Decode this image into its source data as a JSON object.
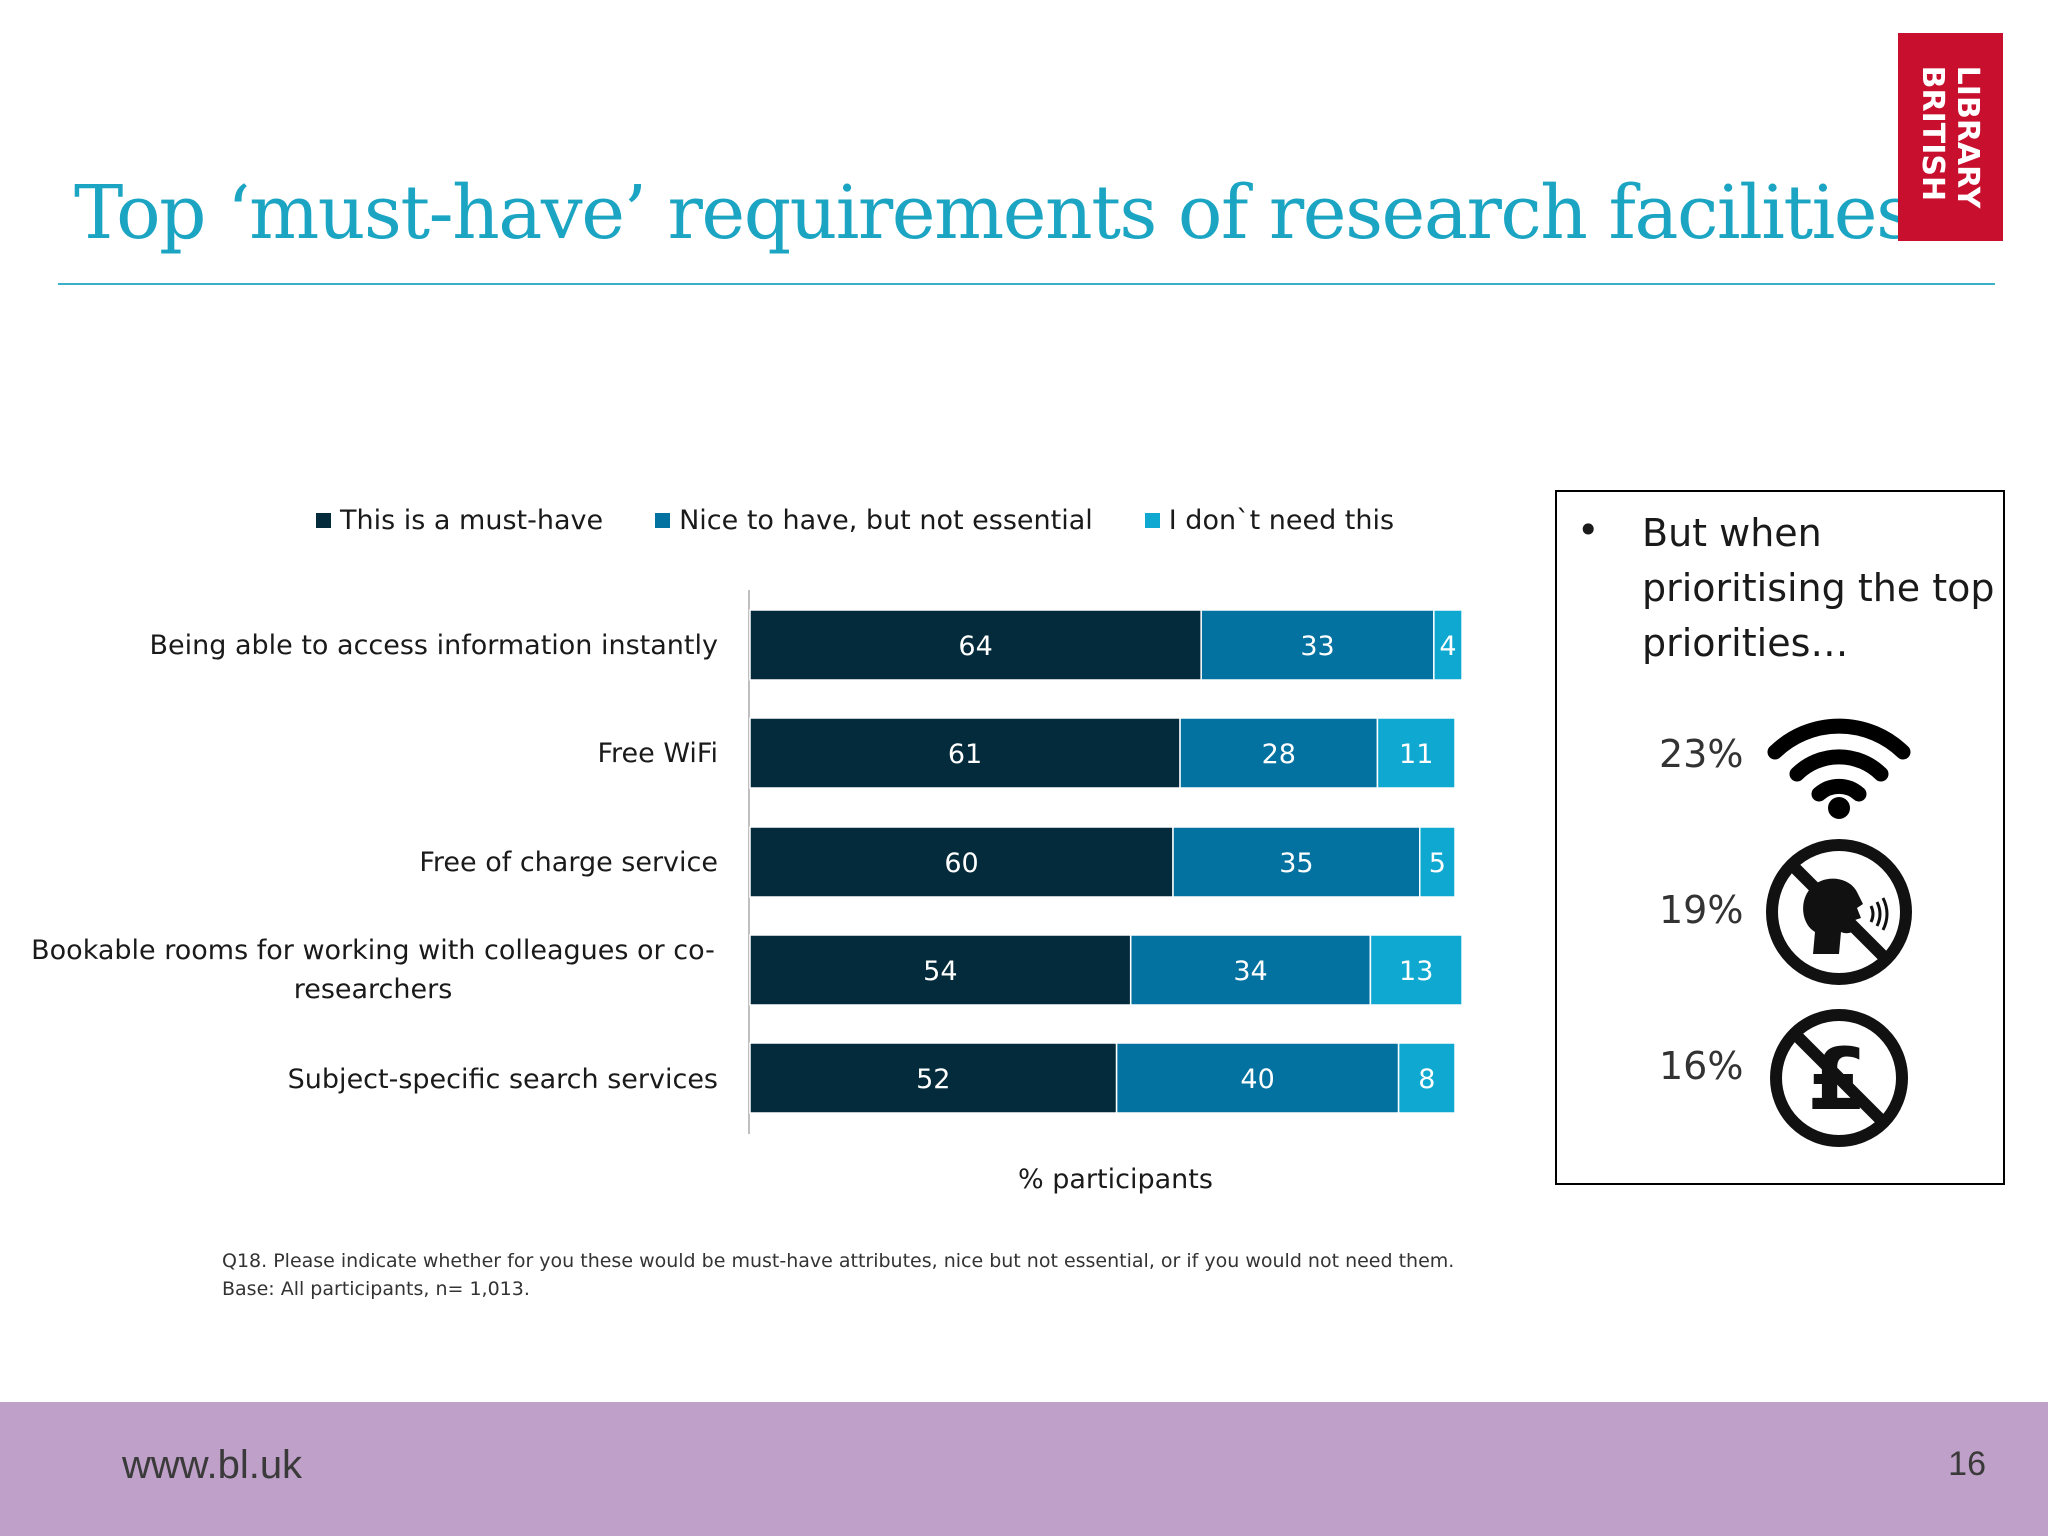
{
  "slide": {
    "title": "Top ‘must-have’ requirements of research facilities",
    "logo_text_line1": "LIBRARY",
    "logo_text_line2": "BRITISH",
    "footnote_line1": "Q18. Please indicate whether for you these would be must-have attributes, nice but not essential, or if you would not need them.",
    "footnote_line2": "Base: All participants, n= 1,013.",
    "url": "www.bl.uk",
    "page_number": "16"
  },
  "chart_data": {
    "type": "bar",
    "orientation": "horizontal",
    "stacked": true,
    "title": "",
    "xlabel": "% participants",
    "ylabel": "",
    "xlim": [
      0,
      100
    ],
    "grid": false,
    "legend_position": "top",
    "categories": [
      "Being able to access information instantly",
      "Free WiFi",
      "Free of charge service",
      "Bookable rooms for working with colleagues or co-researchers",
      "Subject-specific search services"
    ],
    "category_display": [
      [
        "Being able to access information instantly"
      ],
      [
        "Free WiFi"
      ],
      [
        "Free of charge service"
      ],
      [
        "Bookable rooms for working with colleagues or co-",
        "researchers"
      ],
      [
        "Subject-specific search services"
      ]
    ],
    "series": [
      {
        "name": "This is a must-have",
        "color": "#032b3b",
        "values": [
          64,
          61,
          60,
          54,
          52
        ]
      },
      {
        "name": "Nice to have, but not essential",
        "color": "#0472a0",
        "values": [
          33,
          28,
          35,
          34,
          40
        ]
      },
      {
        "name": "I don`t need this",
        "color": "#0ea8d0",
        "values": [
          4,
          11,
          5,
          13,
          8
        ]
      }
    ]
  },
  "side_panel": {
    "bullet": "•",
    "heading": "But when prioritising the top priorities…",
    "items": [
      {
        "value": "23%",
        "icon": "wifi-icon"
      },
      {
        "value": "19%",
        "icon": "no-talking-icon"
      },
      {
        "value": "16%",
        "icon": "no-pound-icon"
      }
    ]
  }
}
